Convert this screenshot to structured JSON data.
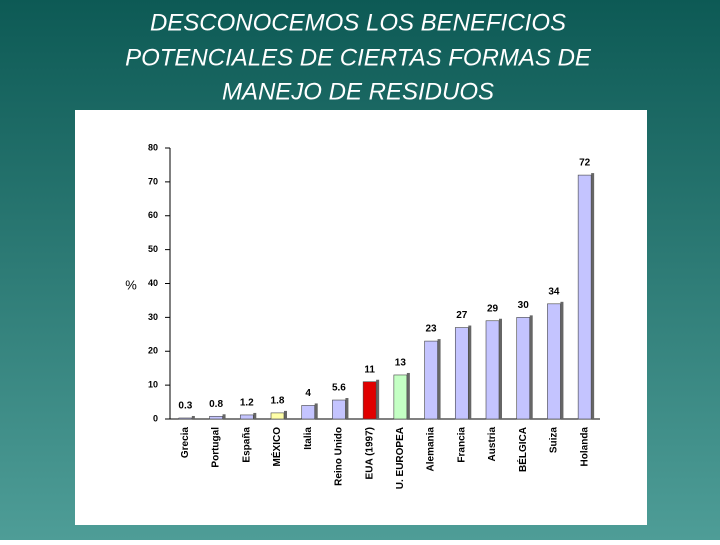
{
  "chart_data": {
    "type": "bar",
    "title": [
      "DESCONOCEMOS LOS BENEFICIOS",
      "POTENCIALES DE CIERTAS FORMAS DE",
      "MANEJO DE RESIDUOS"
    ],
    "ylabel": "%",
    "categories": [
      "Grecia",
      "Portugal",
      "España",
      "MÉXICO",
      "Italia",
      "Reino Unido",
      "EUA (1997)",
      "U. EUROPEA",
      "Alemania",
      "Francia",
      "Austria",
      "BÉLGICA",
      "Suiza",
      "Holanda"
    ],
    "values": [
      0.3,
      0.8,
      1.2,
      1.8,
      4,
      5.6,
      11,
      13,
      23,
      27,
      29,
      30,
      34,
      72
    ],
    "colors": [
      "#c4c4ff",
      "#c4c4ff",
      "#c4c4ff",
      "#ffffa8",
      "#c4c4ff",
      "#c4c4ff",
      "#e00000",
      "#c4ffc4",
      "#c4c4ff",
      "#c4c4ff",
      "#c4c4ff",
      "#c4c4ff",
      "#c4c4ff",
      "#c4c4ff"
    ],
    "ylim": [
      0,
      80
    ],
    "yticks": [
      0,
      10,
      20,
      30,
      40,
      50,
      60,
      70,
      80
    ]
  }
}
